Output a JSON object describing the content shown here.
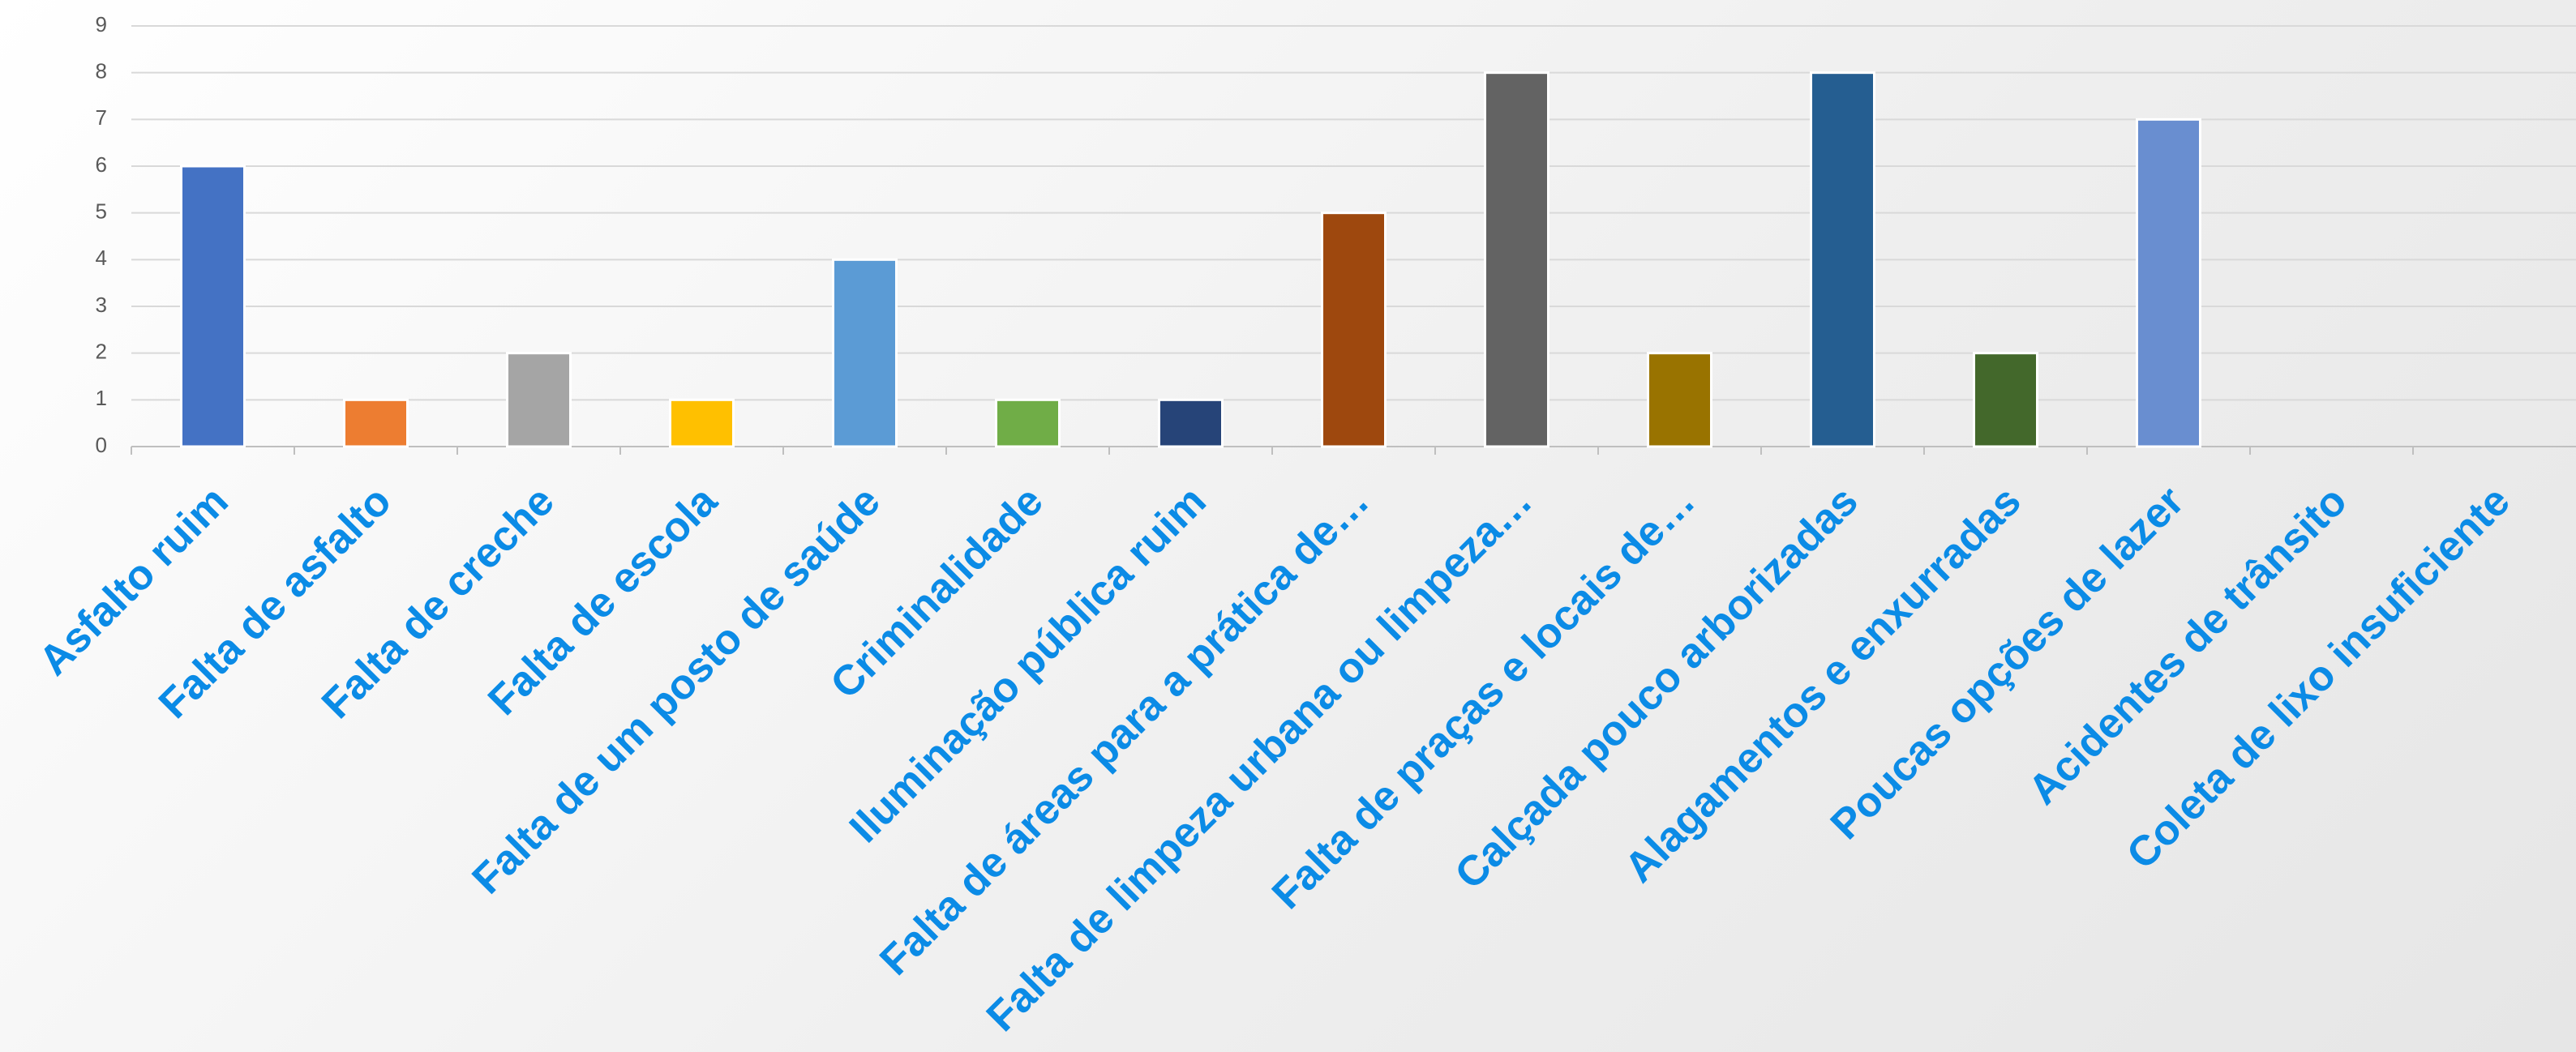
{
  "chart_data": {
    "type": "bar",
    "categories": [
      "Asfalto ruim",
      "Falta de asfalto",
      "Falta de creche",
      "Falta de escola",
      "Falta de um posto de saúde",
      "Criminalidade",
      "Iluminação pública ruim",
      "Falta de áreas para a prática de…",
      "Falta de limpeza urbana ou limpeza…",
      "Falta de praças e locais de…",
      "Calçada pouco arborizadas",
      "Alagamentos e enxurradas",
      "Poucas opções de lazer",
      "Acidentes de trânsito",
      "Coleta de lixo insuficiente"
    ],
    "values": [
      6,
      1,
      2,
      1,
      4,
      1,
      1,
      5,
      8,
      2,
      8,
      2,
      7,
      0,
      0
    ],
    "colors": [
      "#4472c4",
      "#ed7d31",
      "#a5a5a5",
      "#ffc000",
      "#5b9bd5",
      "#70ad47",
      "#264478",
      "#9e480e",
      "#636363",
      "#997300",
      "#255e91",
      "#43682b",
      "#698ed0",
      "#4472c4",
      "#4472c4"
    ],
    "ylim": [
      0,
      9
    ],
    "yticks": [
      0,
      1,
      2,
      3,
      4,
      5,
      6,
      7,
      8,
      9
    ],
    "grid": true
  }
}
